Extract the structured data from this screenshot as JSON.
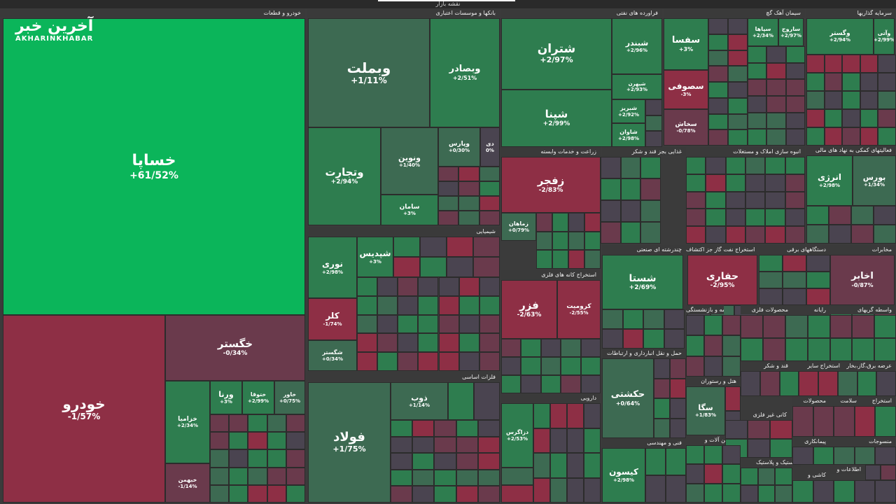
{
  "header": {
    "title": "نقشه بازار"
  },
  "logo": {
    "text_fa": "آخرین خبر",
    "text_en": "AKHARINKHABAR"
  },
  "colors": {
    "up_strong": "#1fa85a",
    "up": "#2e7d4f",
    "up_dim": "#3d6a52",
    "neutral": "#4a4450",
    "down_dim": "#6a3a4c",
    "down": "#8e2f45",
    "hot": "#0bb55a"
  },
  "chart_data": {
    "type": "treemap",
    "sectors": [
      {
        "name": "خودرو و قطعات",
        "stocks": [
          {
            "name": "خساپا",
            "change": "+61/52%"
          },
          {
            "name": "خودرو",
            "change": "-1/57%"
          },
          {
            "name": "خگستر",
            "change": "-0/34%"
          },
          {
            "name": "ورنا",
            "change": "+3%"
          },
          {
            "name": "خزامیا",
            "change": "+2/34%"
          },
          {
            "name": "خبهمن",
            "change": "-1/14%"
          },
          {
            "name": "ختوقا",
            "change": "+2/99%"
          },
          {
            "name": "خاور",
            "change": "+0/75%"
          }
        ]
      },
      {
        "name": "بانکها و موسسات اعتباری",
        "stocks": [
          {
            "name": "وبملت",
            "change": "+1/11%"
          },
          {
            "name": "وبصادر",
            "change": "+2/51%"
          },
          {
            "name": "وتجارت",
            "change": "+2/94%"
          },
          {
            "name": "ونوین",
            "change": "+1/40%"
          },
          {
            "name": "وپارس",
            "change": "+0/30%"
          },
          {
            "name": "دی",
            "change": "0%"
          },
          {
            "name": "سامان",
            "change": "+3%"
          }
        ]
      },
      {
        "name": "فراورده های نفتی",
        "stocks": [
          {
            "name": "شتران",
            "change": "+2/97%"
          },
          {
            "name": "شپنا",
            "change": "+2/99%"
          },
          {
            "name": "شبندر",
            "change": "+2/96%"
          },
          {
            "name": "شپهرن",
            "change": "+2/93%"
          },
          {
            "name": "شبریز",
            "change": "+2/92%"
          },
          {
            "name": "شاوان",
            "change": "+2/98%"
          }
        ]
      },
      {
        "name": "سیمان آهک گچ",
        "stocks": [
          {
            "name": "سفسا",
            "change": "+3%"
          },
          {
            "name": "سصوفی",
            "change": "-3%"
          },
          {
            "name": "سخاش",
            "change": "-0/78%"
          },
          {
            "name": "سپاها",
            "change": "+2/34%"
          },
          {
            "name": "ساروج",
            "change": "+2/97%"
          }
        ]
      },
      {
        "name": "سرمایه گذاریها",
        "stocks": [
          {
            "name": "وگستر",
            "change": "+2/94%"
          },
          {
            "name": "وآتی",
            "change": "+2/99%"
          }
        ]
      },
      {
        "name": "زراعت و خدمات وابسته",
        "stocks": [
          {
            "name": "زفجر",
            "change": "-2/83%"
          },
          {
            "name": "زماهان",
            "change": "+0/79%"
          }
        ]
      },
      {
        "name": "استخراج کانه های فلزی",
        "stocks": [
          {
            "name": "فزر",
            "change": "-2/63%"
          },
          {
            "name": "کرومیت",
            "change": "-2/55%"
          }
        ]
      },
      {
        "name": "شیمیایی",
        "stocks": [
          {
            "name": "نوری",
            "change": "+2/98%"
          },
          {
            "name": "شپدیس",
            "change": "+3%"
          },
          {
            "name": "کلر",
            "change": "-1/74%"
          },
          {
            "name": "شگستر",
            "change": "+0/34%"
          }
        ]
      },
      {
        "name": "فلزات اساسی",
        "stocks": [
          {
            "name": "فولاد",
            "change": "+1/75%"
          },
          {
            "name": "ذوب",
            "change": "+1/14%"
          }
        ]
      },
      {
        "name": "چندرشته ای صنعتی",
        "stocks": [
          {
            "name": "شستا",
            "change": "+2/69%"
          }
        ]
      },
      {
        "name": "استخراج نفت گاز جز اکتشاف",
        "stocks": [
          {
            "name": "حفاری",
            "change": "-2/95%"
          }
        ]
      },
      {
        "name": "مخابرات",
        "stocks": [
          {
            "name": "اخابر",
            "change": "-0/87%"
          }
        ]
      },
      {
        "name": "حمل و نقل انبارداری و ارتباطات",
        "stocks": [
          {
            "name": "حکشتی",
            "change": "+0/64%"
          }
        ]
      },
      {
        "name": "فنی و مهندسی",
        "stocks": [
          {
            "name": "کیسون",
            "change": "+2/98%"
          }
        ]
      },
      {
        "name": "فعالیتهای کمکی به نهاد های مالی",
        "stocks": [
          {
            "name": "انرژی",
            "change": "+2/98%"
          },
          {
            "name": "بورس",
            "change": "+1/34%"
          }
        ]
      },
      {
        "name": "هتل و رستوران",
        "stocks": [
          {
            "name": "سگا",
            "change": "+1/83%"
          }
        ]
      },
      {
        "name": "دارویی",
        "stocks": [
          {
            "name": "دزاگرس",
            "change": "+2/53%"
          }
        ]
      }
    ],
    "sector_labels": [
      "غذایی بجز قند و شکر",
      "انبوه سازی املاک و مستغلات",
      "دستگاههای برقی",
      "بیمه و بازنشستگی",
      "محصولات فلزی",
      "رایانه",
      "واسطه گریهای",
      "قند و شکر",
      "استخراج سایر",
      "عرضه برق،گاز،بخار",
      "کانی غیر فلزی",
      "ماشین آلات و",
      "محصولات",
      "سلامت",
      "استخراج",
      "لاستیک و پلاستیک",
      "پیمانکاری",
      "منسوجات",
      "اطلاعات و",
      "کاشی و"
    ]
  }
}
